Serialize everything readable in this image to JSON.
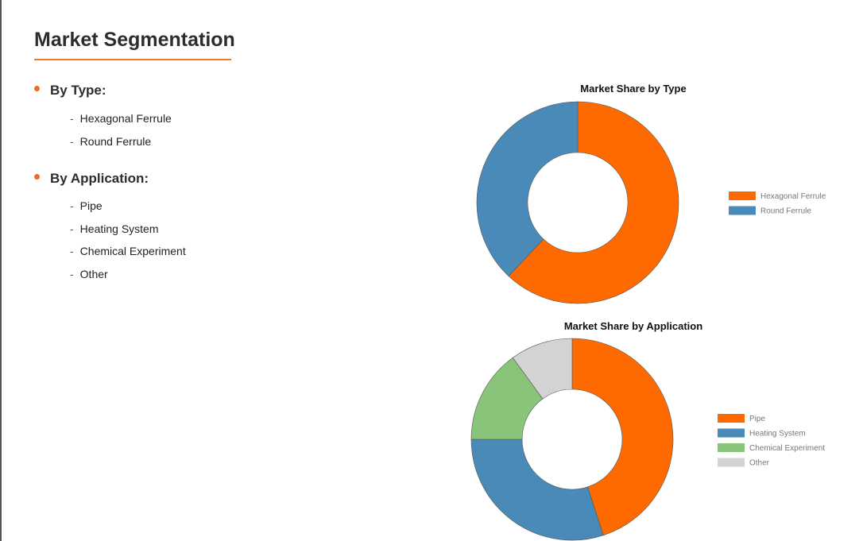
{
  "title": "Market Segmentation",
  "sections": [
    {
      "heading": "By Type:",
      "items": [
        "Hexagonal Ferrule",
        "Round Ferrule"
      ]
    },
    {
      "heading": "By Application:",
      "items": [
        "Pipe",
        "Heating System",
        "Chemical Experiment",
        "Other"
      ]
    }
  ],
  "colors": {
    "accent": "#f26a1b",
    "orange": "#ff6a00",
    "blue": "#4a8ab8",
    "green": "#88c47a",
    "gray": "#d3d3d3"
  },
  "chart_data": [
    {
      "type": "pie",
      "variant": "donut",
      "title": "Market Share by Type",
      "legend": "right",
      "categories": [
        "Hexagonal Ferrule",
        "Round Ferrule"
      ],
      "values": [
        62,
        38
      ],
      "colors": [
        "#ff6a00",
        "#4a8ab8"
      ]
    },
    {
      "type": "pie",
      "variant": "donut",
      "title": "Market Share by Application",
      "legend": "right",
      "categories": [
        "Pipe",
        "Heating System",
        "Chemical Experiment",
        "Other"
      ],
      "values": [
        45,
        30,
        15,
        10
      ],
      "colors": [
        "#ff6a00",
        "#4a8ab8",
        "#88c47a",
        "#d3d3d3"
      ]
    }
  ]
}
